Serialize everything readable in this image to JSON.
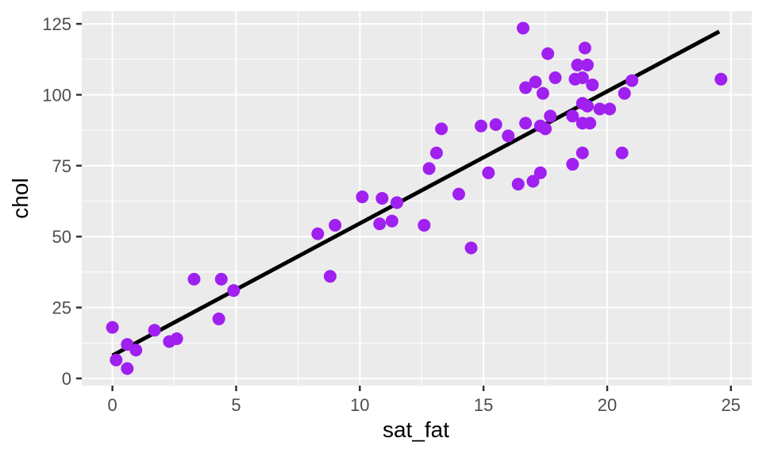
{
  "chart_data": {
    "type": "scatter",
    "title": "",
    "xlabel": "sat_fat",
    "ylabel": "chol",
    "xlim": [
      -1.24,
      25.84
    ],
    "ylim": [
      -2.52,
      129.5
    ],
    "x_ticks": [
      0,
      5,
      10,
      15,
      20,
      25
    ],
    "x_tick_labels": [
      "0",
      "5",
      "10",
      "15",
      "20",
      "25"
    ],
    "y_ticks": [
      0,
      25,
      50,
      75,
      100,
      125
    ],
    "y_tick_labels": [
      "0",
      "25",
      "50",
      "75",
      "100",
      "125"
    ],
    "x_minor_ticks": [
      2.5,
      7.5,
      12.5,
      17.5,
      22.5
    ],
    "y_minor_ticks": [
      12.5,
      37.5,
      62.5,
      87.5,
      112.5
    ],
    "grid": "major+minor",
    "legend": null,
    "points": [
      [
        0.0,
        18
      ],
      [
        0.15,
        6.5
      ],
      [
        0.6,
        12
      ],
      [
        0.6,
        3.5
      ],
      [
        0.95,
        10
      ],
      [
        1.7,
        17
      ],
      [
        2.3,
        13
      ],
      [
        2.6,
        14
      ],
      [
        3.3,
        35
      ],
      [
        4.3,
        21
      ],
      [
        4.4,
        35
      ],
      [
        4.9,
        31
      ],
      [
        8.3,
        51
      ],
      [
        8.8,
        36
      ],
      [
        9.0,
        54
      ],
      [
        10.1,
        64
      ],
      [
        10.9,
        63.5
      ],
      [
        11.5,
        62
      ],
      [
        10.8,
        54.5
      ],
      [
        11.3,
        55.5
      ],
      [
        12.6,
        54
      ],
      [
        12.8,
        74
      ],
      [
        13.1,
        79.5
      ],
      [
        13.3,
        88
      ],
      [
        14.0,
        65
      ],
      [
        14.5,
        46
      ],
      [
        14.9,
        89
      ],
      [
        15.5,
        89.5
      ],
      [
        15.2,
        72.5
      ],
      [
        16.0,
        85.5
      ],
      [
        16.4,
        68.5
      ],
      [
        16.6,
        123.5
      ],
      [
        16.7,
        102.5
      ],
      [
        16.7,
        90
      ],
      [
        17.0,
        69.5
      ],
      [
        17.1,
        104.5
      ],
      [
        17.3,
        89
      ],
      [
        17.3,
        72.5
      ],
      [
        17.4,
        100.5
      ],
      [
        17.5,
        88
      ],
      [
        17.6,
        114.5
      ],
      [
        17.7,
        92.5
      ],
      [
        17.9,
        106
      ],
      [
        18.6,
        92.5
      ],
      [
        18.6,
        75.5
      ],
      [
        18.7,
        105.5
      ],
      [
        19.0,
        106
      ],
      [
        19.0,
        97
      ],
      [
        19.0,
        90
      ],
      [
        19.0,
        79.5
      ],
      [
        19.1,
        116.5
      ],
      [
        18.8,
        110.5
      ],
      [
        19.2,
        110.5
      ],
      [
        19.2,
        96
      ],
      [
        19.3,
        90
      ],
      [
        19.4,
        103.5
      ],
      [
        19.7,
        95
      ],
      [
        20.1,
        95
      ],
      [
        20.6,
        79.5
      ],
      [
        20.7,
        100.5
      ],
      [
        21.0,
        105
      ],
      [
        24.6,
        105.5
      ]
    ],
    "trend_line": {
      "x1": 0.0,
      "y1": 8.1,
      "x2": 24.53,
      "y2": 122.3
    },
    "style": {
      "point_color": "#A020F0",
      "point_radius": 8,
      "trend_color": "#000000",
      "trend_width": 5,
      "panel_bg": "#EBEBEB",
      "grid_color": "#FFFFFF",
      "major_grid_width": 2,
      "minor_grid_width": 1,
      "tick_mark_color": "#333333",
      "tick_label_color": "#4D4D4D",
      "axis_title_color": "#000000"
    }
  }
}
